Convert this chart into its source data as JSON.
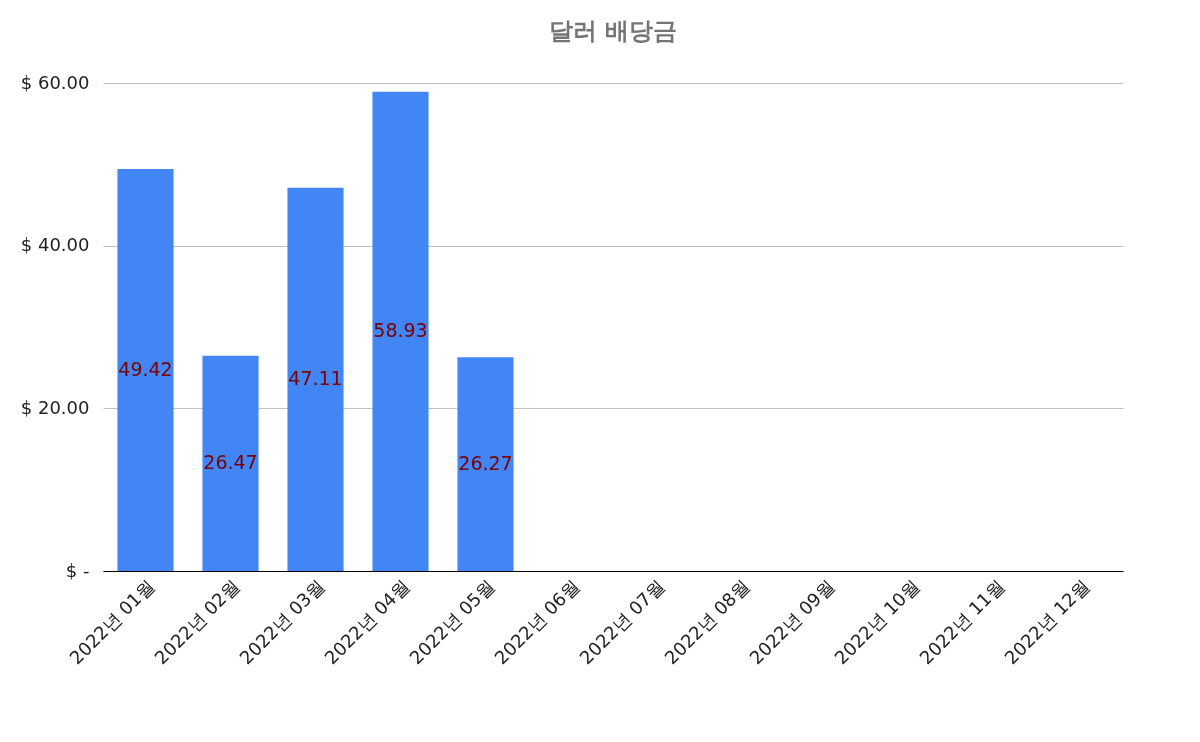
{
  "chart_data": {
    "type": "bar",
    "title": "달러 배당금",
    "categories": [
      "2022년 01월",
      "2022년 02월",
      "2022년 03월",
      "2022년 04월",
      "2022년 05월",
      "2022년 06월",
      "2022년 07월",
      "2022년 08월",
      "2022년 09월",
      "2022년 10월",
      "2022년 11월",
      "2022년 12월"
    ],
    "values": [
      49.42,
      26.47,
      47.11,
      58.93,
      26.27,
      null,
      null,
      null,
      null,
      null,
      null,
      null
    ],
    "color": "#4285f4",
    "ylim": [
      0,
      60
    ],
    "yticks": [
      {
        "value": 0,
        "label": "$ -"
      },
      {
        "value": 20,
        "label": "$ 20.00"
      },
      {
        "value": 40,
        "label": "$ 40.00"
      },
      {
        "value": 60,
        "label": "$ 60.00"
      }
    ],
    "grid": "y",
    "legend": false,
    "data_labels": true
  }
}
